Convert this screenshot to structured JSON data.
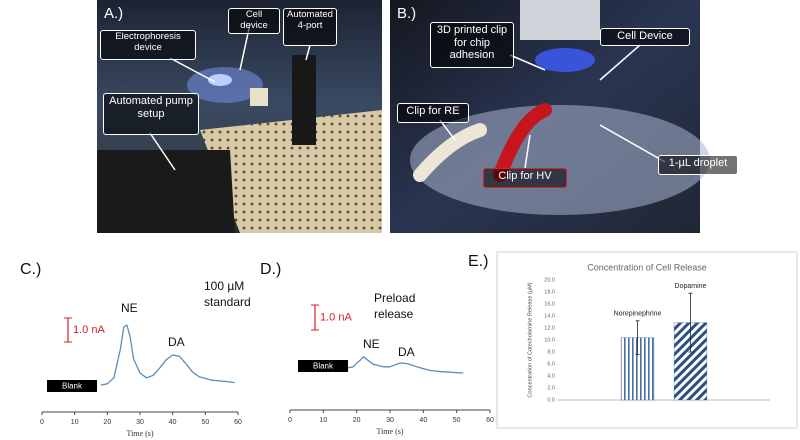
{
  "photos": [
    {
      "panel_label": "A.)",
      "labels": [
        "Cell device",
        "Automated 4-port",
        "Electrophoresis device",
        "Automated pump setup"
      ]
    },
    {
      "panel_label": "B.)",
      "labels": [
        "3D printed clip for chip adhesion",
        "Cell Device",
        "Clip for RE",
        "1-µL droplet",
        "Clip for HV"
      ]
    }
  ],
  "chart_data": [
    {
      "type": "line",
      "panel_label": "C.)",
      "xlabel": "Time (s)",
      "x": [
        18,
        20,
        22,
        24,
        25,
        26,
        27,
        28,
        30,
        32,
        34,
        36,
        38,
        40,
        42,
        44,
        46,
        48,
        52,
        56,
        59
      ],
      "series": [
        {
          "color": "#5b8db8",
          "values": [
            0,
            0.05,
            0.3,
            1.5,
            2.4,
            2.5,
            2.0,
            1.1,
            0.5,
            0.3,
            0.4,
            0.7,
            1.05,
            1.25,
            1.2,
            0.9,
            0.55,
            0.35,
            0.2,
            0.15,
            0.1
          ]
        }
      ],
      "xlim": [
        0,
        60
      ],
      "xticks": [
        0,
        10,
        20,
        30,
        40,
        50,
        60
      ],
      "ylim": [
        -0.5,
        3
      ],
      "scale_bar": {
        "value": 1.0,
        "label": "1.0 nA",
        "color": "#d42020"
      },
      "baseline_label": "Blank",
      "annotations": [
        "NE",
        "DA",
        "100 µM standard"
      ]
    },
    {
      "type": "line",
      "panel_label": "D.)",
      "xlabel": "Time (s)",
      "x": [
        17,
        19,
        20,
        21,
        22,
        23,
        25,
        28,
        30,
        33,
        35,
        38,
        42,
        46,
        52
      ],
      "series": [
        {
          "color": "#5b8db8",
          "values": [
            0,
            0.05,
            0.2,
            0.3,
            0.45,
            0.35,
            0.15,
            0.05,
            0.05,
            0.2,
            0.18,
            0.05,
            -0.1,
            -0.15,
            -0.2
          ]
        }
      ],
      "xlim": [
        0,
        60
      ],
      "xticks": [
        0,
        10,
        20,
        30,
        40,
        50,
        60
      ],
      "ylim": [
        -0.5,
        2.5
      ],
      "scale_bar": {
        "value": 1.0,
        "label": "1.0 nA",
        "color": "#d42020"
      },
      "baseline_label": "Blank",
      "annotations": [
        "Preload release",
        "NE",
        "DA"
      ]
    },
    {
      "type": "bar",
      "panel_label": "E.)",
      "title": "Concentration of Cell Release",
      "ylabel": "Concentration of Catecholamine Release (µM)",
      "categories": [
        "Norepinephrine",
        "Dopamine"
      ],
      "values": [
        10.4,
        12.9
      ],
      "errors": [
        2.8,
        4.9
      ],
      "color": "#4a6fa5",
      "ylim": [
        0,
        20
      ],
      "yticks": [
        {
          "value": 0,
          "label": "0.0"
        },
        {
          "value": 2,
          "label": "2.0"
        },
        {
          "value": 4,
          "label": "4.0"
        },
        {
          "value": 6,
          "label": "6.0"
        },
        {
          "value": 8,
          "label": "8.0"
        },
        {
          "value": 10,
          "label": "10.0"
        },
        {
          "value": 12,
          "label": "12.0"
        },
        {
          "value": 14,
          "label": "14.0"
        },
        {
          "value": 16,
          "label": "16.0"
        },
        {
          "value": 18,
          "label": "18.0"
        },
        {
          "value": 20,
          "label": "20.0"
        }
      ]
    }
  ]
}
